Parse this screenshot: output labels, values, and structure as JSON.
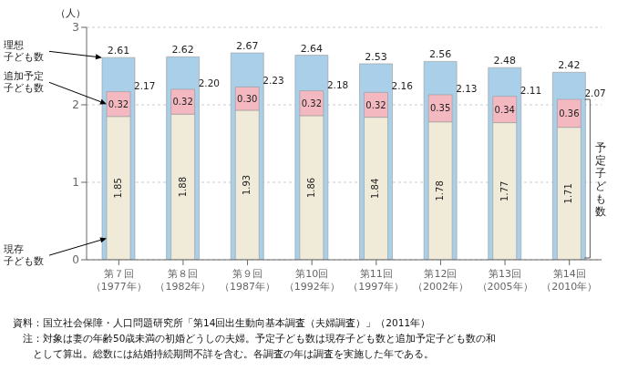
{
  "chart_data": {
    "type": "bar",
    "categories": [
      "第７回\n（1977年）",
      "第８回\n（1982年）",
      "第９回\n（1987年）",
      "第10回\n（1992年）",
      "第11回\n（1997年）",
      "第12回\n（2002年）",
      "第13回\n（2005年）",
      "第14回\n（2010年）"
    ],
    "series": [
      {
        "name": "理想\n子ども数",
        "color": "#aacfe8",
        "values": [
          2.61,
          2.62,
          2.67,
          2.64,
          2.53,
          2.56,
          2.48,
          2.42
        ],
        "data_labels": true
      },
      {
        "name": "現存\n子ども数",
        "color": "#f0ead8",
        "values": [
          1.85,
          1.88,
          1.93,
          1.86,
          1.84,
          1.78,
          1.77,
          1.71
        ],
        "stacked": true,
        "data_labels": true
      },
      {
        "name": "追加予定\n子ども数",
        "color": "#f4b8c0",
        "values": [
          0.32,
          0.32,
          0.3,
          0.32,
          0.32,
          0.35,
          0.34,
          0.36
        ],
        "value_labels": [
          "0.32",
          "0.32",
          "0.30",
          "0.32",
          "0.32",
          "0.35",
          "0.34",
          "0.36"
        ],
        "stacked": true,
        "data_labels": true
      }
    ],
    "totals": {
      "name": "予\n定\n子\nど\nも\n数",
      "values": [
        2.17,
        2.2,
        2.23,
        2.18,
        2.16,
        2.13,
        2.11,
        2.07
      ],
      "value_labels": [
        "2.17",
        "2.20",
        "2.23",
        "2.18",
        "2.16",
        "2.13",
        "2.11",
        "2.07"
      ]
    },
    "ylabel": "（人）",
    "ylim": [
      0,
      3
    ],
    "yticks": [
      0,
      1,
      2,
      3
    ],
    "grid": true,
    "notes": [
      "資料：国立社会保障・人口問題研究所「第14回出生動向基本調査（夫婦調査）」（2011年）",
      "　注：対象は妻の年齢50歳未満の初婚どうしの夫婦。予定子ども数は現存子ども数と追加予定子ども数の和",
      "　　として算出。総数には結婚持続期間不詳を含む。各調査の年は調査を実施した年である。"
    ]
  }
}
